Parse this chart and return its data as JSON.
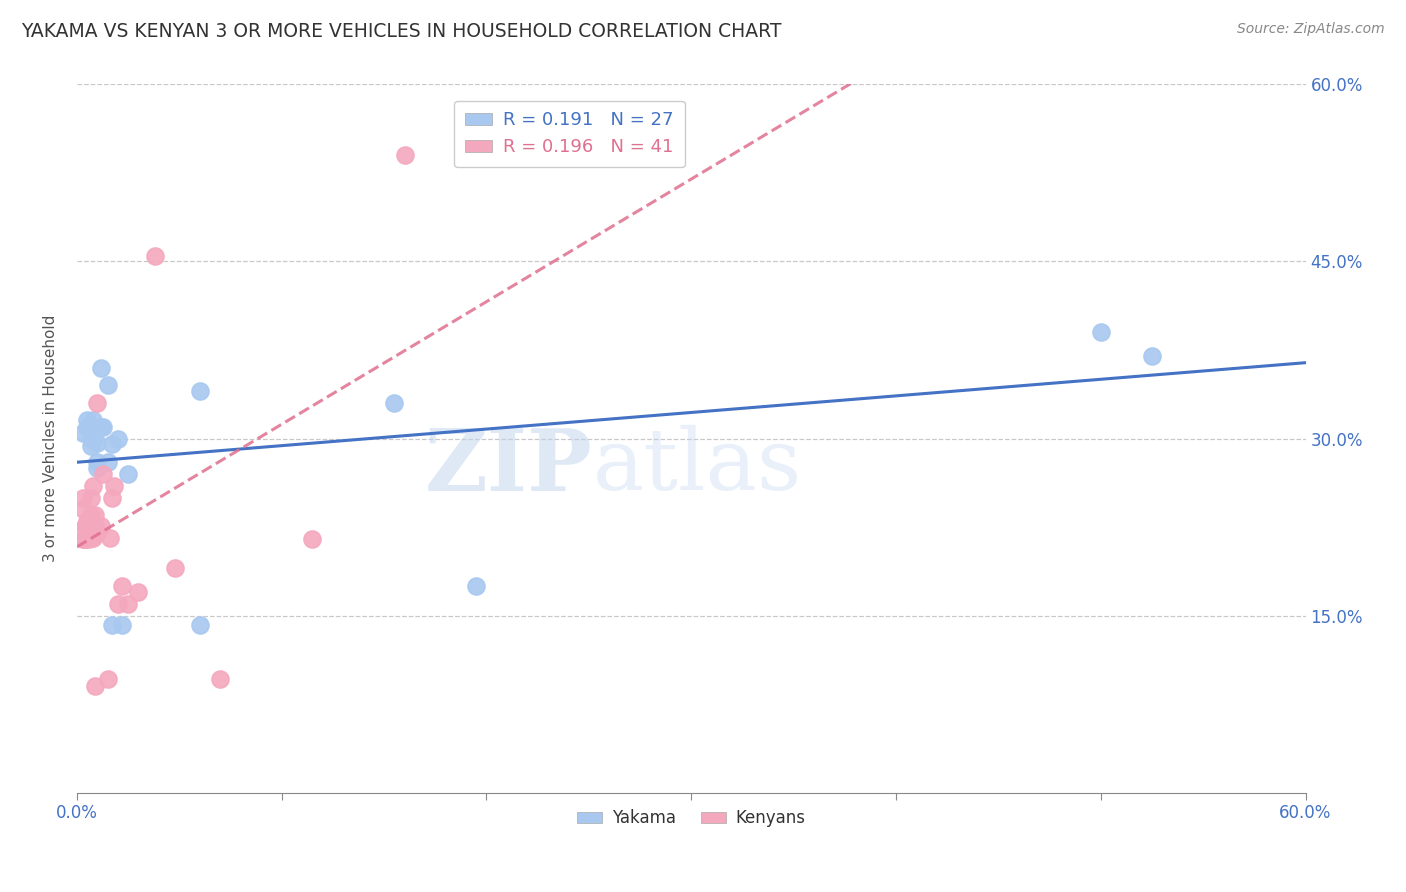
{
  "title": "YAKAMA VS KENYAN 3 OR MORE VEHICLES IN HOUSEHOLD CORRELATION CHART",
  "source": "Source: ZipAtlas.com",
  "ylabel": "3 or more Vehicles in Household",
  "xlim": [
    0.0,
    0.6
  ],
  "ylim": [
    0.0,
    0.6
  ],
  "xticks": [
    0.0,
    0.6
  ],
  "xticklabels": [
    "0.0%",
    "60.0%"
  ],
  "yticks": [
    0.15,
    0.3,
    0.45,
    0.6
  ],
  "yticklabels_right": [
    "15.0%",
    "30.0%",
    "45.0%",
    "60.0%"
  ],
  "legend1_R": "0.191",
  "legend1_N": "27",
  "legend2_R": "0.196",
  "legend2_N": "41",
  "yakama_color": "#A8C8F0",
  "kenyan_color": "#F4A8BE",
  "line_yakama_color": "#4472C4",
  "line_kenyan_color": "#E07090",
  "watermark_zip": "ZIP",
  "watermark_atlas": "atlas",
  "background_color": "#FFFFFF",
  "grid_color": "#C8C8C8",
  "yakama_x": [
    0.003,
    0.005,
    0.005,
    0.007,
    0.007,
    0.008,
    0.008,
    0.008,
    0.01,
    0.01,
    0.01,
    0.012,
    0.012,
    0.013,
    0.015,
    0.015,
    0.017,
    0.017,
    0.02,
    0.022,
    0.025,
    0.06,
    0.06,
    0.155,
    0.195,
    0.5,
    0.525
  ],
  "yakama_y": [
    0.305,
    0.31,
    0.316,
    0.294,
    0.3,
    0.31,
    0.316,
    0.3,
    0.275,
    0.28,
    0.296,
    0.31,
    0.36,
    0.31,
    0.28,
    0.345,
    0.295,
    0.142,
    0.3,
    0.142,
    0.27,
    0.34,
    0.142,
    0.33,
    0.175,
    0.39,
    0.37
  ],
  "kenyan_x": [
    0.003,
    0.003,
    0.003,
    0.004,
    0.004,
    0.004,
    0.004,
    0.005,
    0.005,
    0.005,
    0.005,
    0.005,
    0.006,
    0.006,
    0.006,
    0.007,
    0.007,
    0.007,
    0.007,
    0.008,
    0.008,
    0.009,
    0.009,
    0.009,
    0.01,
    0.01,
    0.012,
    0.013,
    0.015,
    0.016,
    0.017,
    0.018,
    0.02,
    0.022,
    0.025,
    0.03,
    0.038,
    0.048,
    0.07,
    0.115,
    0.16
  ],
  "kenyan_y": [
    0.24,
    0.25,
    0.215,
    0.225,
    0.215,
    0.226,
    0.215,
    0.225,
    0.216,
    0.22,
    0.23,
    0.216,
    0.23,
    0.215,
    0.225,
    0.235,
    0.216,
    0.225,
    0.25,
    0.26,
    0.216,
    0.226,
    0.235,
    0.09,
    0.22,
    0.33,
    0.226,
    0.27,
    0.096,
    0.216,
    0.25,
    0.26,
    0.16,
    0.175,
    0.16,
    0.17,
    0.455,
    0.19,
    0.096,
    0.215,
    0.54
  ],
  "bottom_legend_labels": [
    "Yakama",
    "Kenyans"
  ]
}
